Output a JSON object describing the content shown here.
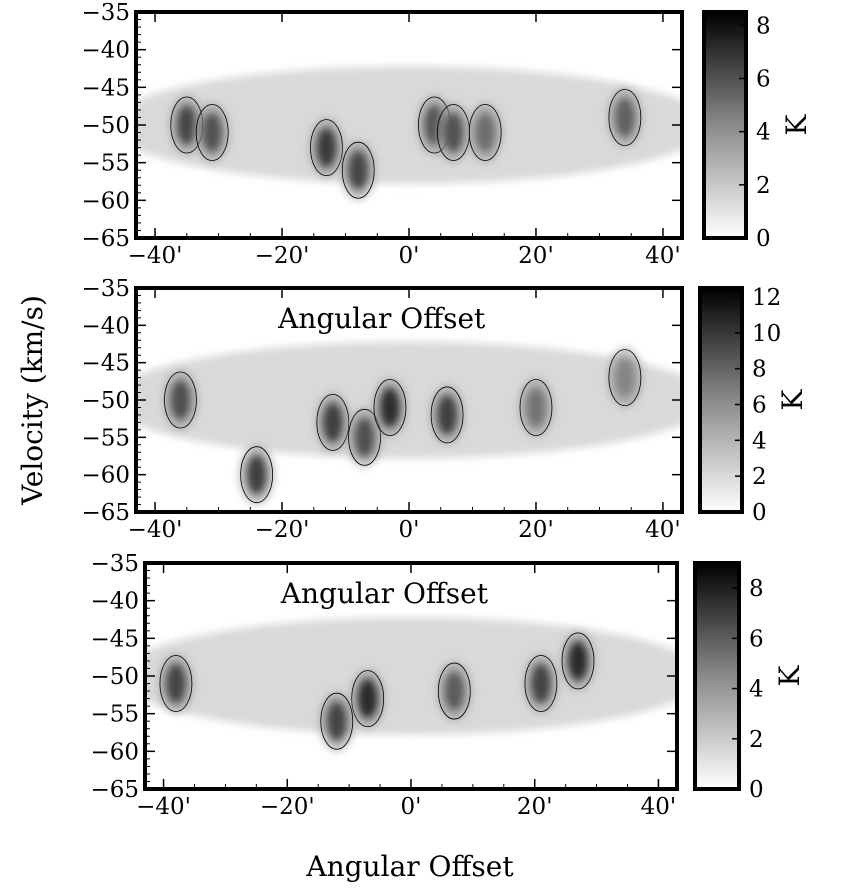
{
  "figure": {
    "ylabel": "Velocity (km/s)",
    "xlabel": "Angular Offset",
    "colorbar_unit": "K"
  },
  "chart_data": [
    {
      "type": "heatmap",
      "xlabel": "Angular Offset",
      "ylabel": "Velocity (km/s)",
      "xlim": [
        -43,
        43
      ],
      "ylim": [
        -65,
        -35
      ],
      "x_ticks": [
        "-40'",
        "-20'",
        "0'",
        "20'",
        "40'"
      ],
      "y_ticks": [
        "-35",
        "-40",
        "-45",
        "-50",
        "-55",
        "-60",
        "-65"
      ],
      "colorbar": {
        "label": "K",
        "range": [
          0,
          8.5
        ],
        "ticks": [
          "0",
          "2",
          "4",
          "6",
          "8"
        ]
      },
      "emission_peaks": [
        {
          "x": -35,
          "v": -50,
          "T": 6.5
        },
        {
          "x": -31,
          "v": -51,
          "T": 6.0
        },
        {
          "x": -13,
          "v": -53,
          "T": 7.0
        },
        {
          "x": -8,
          "v": -56,
          "T": 6.5
        },
        {
          "x": 4,
          "v": -50,
          "T": 6.0
        },
        {
          "x": 7,
          "v": -51,
          "T": 6.0
        },
        {
          "x": 12,
          "v": -51,
          "T": 5.0
        },
        {
          "x": 34,
          "v": -49,
          "T": 5.5
        }
      ],
      "annotations": []
    },
    {
      "type": "heatmap",
      "xlabel": "Angular Offset",
      "ylabel": "Velocity (km/s)",
      "xlim": [
        -43,
        43
      ],
      "ylim": [
        -65,
        -35
      ],
      "x_ticks": [
        "-40'",
        "-20'",
        "0'",
        "20'",
        "40'"
      ],
      "y_ticks": [
        "-35",
        "-40",
        "-45",
        "-50",
        "-55",
        "-60",
        "-65"
      ],
      "colorbar": {
        "label": "K",
        "range": [
          0,
          12.5
        ],
        "ticks": [
          "0",
          "2",
          "4",
          "6",
          "8",
          "10",
          "12"
        ]
      },
      "emission_peaks": [
        {
          "x": -36,
          "v": -50,
          "T": 9.0
        },
        {
          "x": -24,
          "v": -60,
          "T": 10.0
        },
        {
          "x": -12,
          "v": -53,
          "T": 10.0
        },
        {
          "x": -7,
          "v": -55,
          "T": 9.0
        },
        {
          "x": -3,
          "v": -51,
          "T": 11.0
        },
        {
          "x": 6,
          "v": -52,
          "T": 10.0
        },
        {
          "x": 20,
          "v": -51,
          "T": 7.0
        },
        {
          "x": 34,
          "v": -47,
          "T": 6.0
        }
      ],
      "annotations": [
        "Angular Offset"
      ]
    },
    {
      "type": "heatmap",
      "xlabel": "Angular Offset",
      "ylabel": "Velocity (km/s)",
      "xlim": [
        -43,
        43
      ],
      "ylim": [
        -65,
        -35
      ],
      "x_ticks": [
        "-40'",
        "-20'",
        "0'",
        "20'",
        "40'"
      ],
      "y_ticks": [
        "-35",
        "-40",
        "-45",
        "-50",
        "-55",
        "-60",
        "-65"
      ],
      "colorbar": {
        "label": "K",
        "range": [
          0,
          9
        ],
        "ticks": [
          "0",
          "2",
          "4",
          "6",
          "8"
        ]
      },
      "emission_peaks": [
        {
          "x": -38,
          "v": -51,
          "T": 7.0
        },
        {
          "x": -7,
          "v": -53,
          "T": 8.0
        },
        {
          "x": -12,
          "v": -56,
          "T": 7.0
        },
        {
          "x": 7,
          "v": -52,
          "T": 6.0
        },
        {
          "x": 21,
          "v": -51,
          "T": 7.0
        },
        {
          "x": 27,
          "v": -48,
          "T": 8.0
        }
      ],
      "annotations": [
        "Angular Offset"
      ]
    }
  ]
}
